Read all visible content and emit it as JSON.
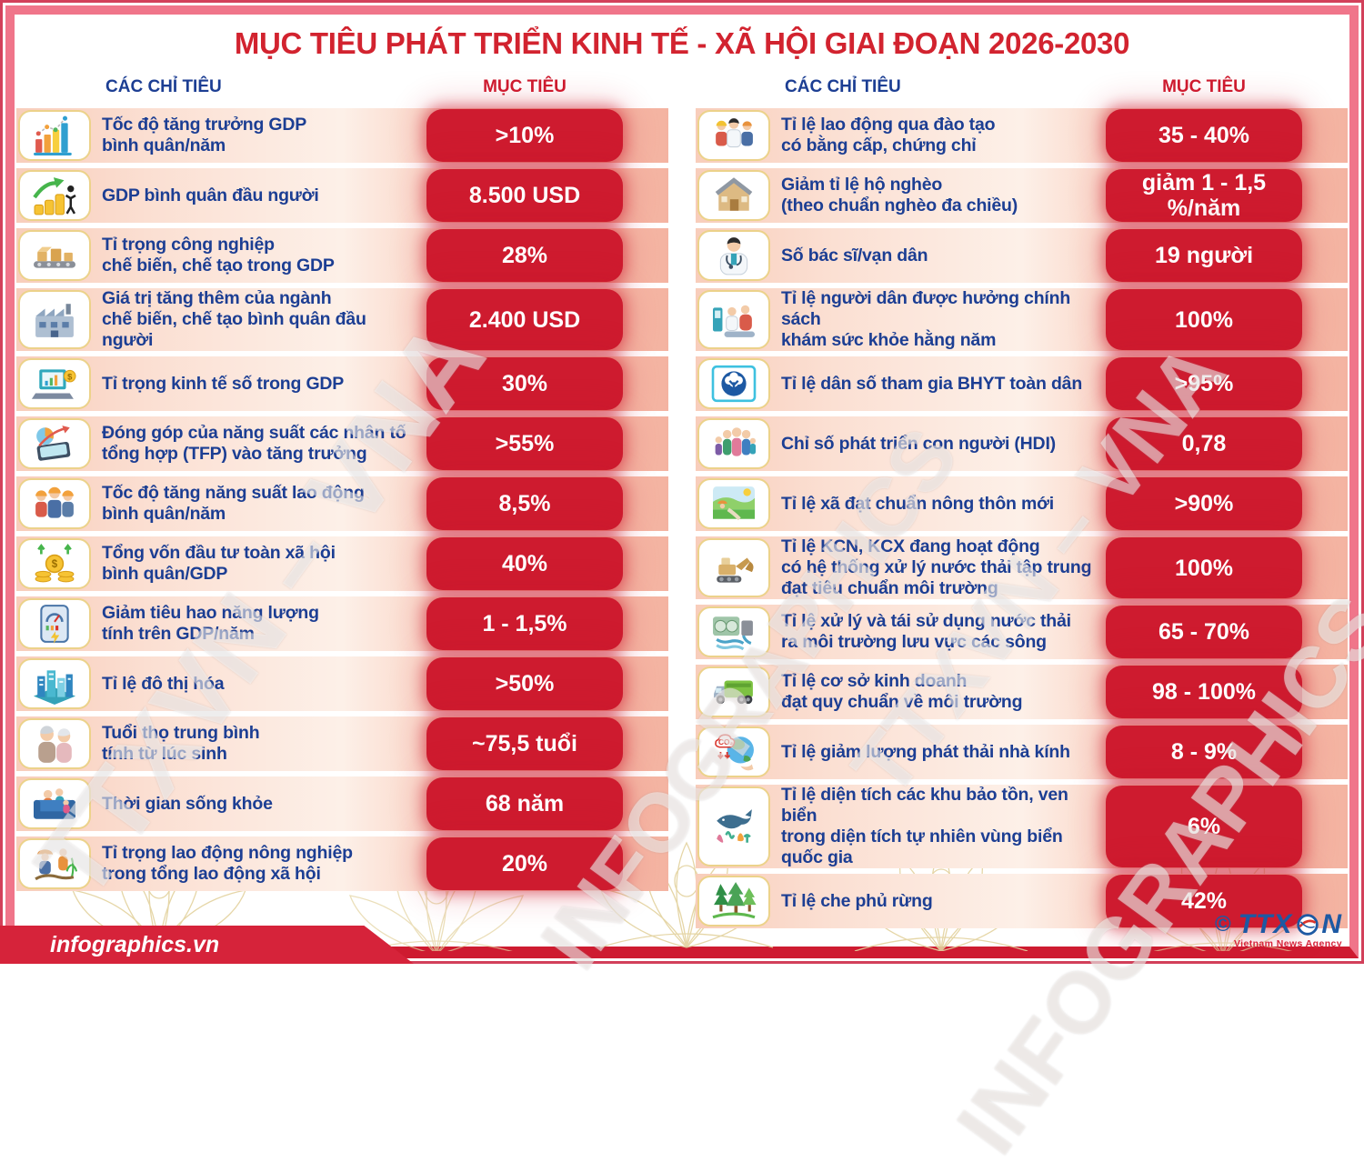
{
  "title": "MỤC TIÊU PHÁT TRIỂN KINH TẾ - XÃ HỘI GIAI ĐOẠN 2026-2030",
  "columns": {
    "indicators_header": "CÁC CHỈ TIÊU",
    "target_header": "MỤC TIÊU"
  },
  "tables": {
    "left": [
      {
        "icon": "gdp-growth",
        "label": "Tốc độ tăng trưởng GDP\nbình quân/năm",
        "value": ">10%"
      },
      {
        "icon": "gdp-per-capita",
        "label": "GDP bình quân đầu người",
        "value": "8.500 USD"
      },
      {
        "icon": "manufacturing-share",
        "label": "Tỉ trọng công nghiệp\nchế biến, chế tạo trong GDP",
        "value": "28%"
      },
      {
        "icon": "manufacturing-value",
        "label": "Giá trị tăng thêm của ngành\nchế biến, chế tạo bình quân đầu người",
        "value": "2.400 USD"
      },
      {
        "icon": "digital-economy",
        "label": "Tỉ trọng kinh tế số trong GDP",
        "value": "30%"
      },
      {
        "icon": "tfp-contribution",
        "label": "Đóng góp của năng suất các nhân tố\ntổng hợp (TFP) vào tăng trưởng",
        "value": ">55%"
      },
      {
        "icon": "labor-productivity",
        "label": "Tốc độ tăng năng suất lao động\nbình quân/năm",
        "value": "8,5%"
      },
      {
        "icon": "social-investment",
        "label": "Tổng vốn đầu tư toàn xã hội\nbình quân/GDP",
        "value": "40%"
      },
      {
        "icon": "energy-consumption",
        "label": "Giảm tiêu hao năng lượng\ntính trên GDP/năm",
        "value": "1 - 1,5%"
      },
      {
        "icon": "urbanization",
        "label": "Tỉ lệ đô thị hóa",
        "value": ">50%"
      },
      {
        "icon": "life-expectancy",
        "label": "Tuổi thọ trung bình\ntính từ lúc sinh",
        "value": "~75,5 tuổi"
      },
      {
        "icon": "healthy-life",
        "label": "Thời gian sống khỏe",
        "value": "68 năm"
      },
      {
        "icon": "agriculture-labor",
        "label": "Tỉ trọng lao động nông nghiệp\ntrong tổng lao động xã hội",
        "value": "20%"
      }
    ],
    "right": [
      {
        "icon": "trained-workers",
        "label": "Tỉ lệ lao động qua đào tạo\ncó bằng cấp, chứng chỉ",
        "value": "35 - 40%"
      },
      {
        "icon": "poverty-reduction",
        "label": "Giảm tỉ lệ hộ nghèo\n(theo chuẩn nghèo đa chiều)",
        "value": "giảm 1 - 1,5\n%/năm"
      },
      {
        "icon": "doctors-per-capita",
        "label": "Số bác sĩ/vạn dân",
        "value": "19 người"
      },
      {
        "icon": "health-checkup",
        "label": "Tỉ lệ người dân được hưởng chính sách\nkhám sức khỏe hằng năm",
        "value": "100%"
      },
      {
        "icon": "health-insurance",
        "label": "Tỉ lệ dân số tham gia BHYT toàn dân",
        "value": ">95%"
      },
      {
        "icon": "hdi",
        "label": "Chỉ số phát triển con người (HDI)",
        "value": "0,78"
      },
      {
        "icon": "new-rural",
        "label": "Tỉ lệ xã đạt chuẩn nông thôn mới",
        "value": ">90%"
      },
      {
        "icon": "industrial-wastewater",
        "label": "Tỉ lệ KCN, KCX đang hoạt động\ncó hệ thống xử lý nước thải tập trung\nđạt tiêu chuẩn môi trường",
        "value": "100%"
      },
      {
        "icon": "wastewater-reuse",
        "label": "Tỉ lệ xử lý và tái sử dụng nước thải\nra môi trường lưu vực các sông",
        "value": "65 - 70%"
      },
      {
        "icon": "business-environment",
        "label": "Tỉ lệ cơ sở kinh doanh\nđạt quy chuẩn về môi trường",
        "value": "98 - 100%"
      },
      {
        "icon": "greenhouse-gas",
        "label": "Tỉ lệ giảm lượng phát thải nhà kính",
        "value": "8 - 9%"
      },
      {
        "icon": "marine-reserves",
        "label": "Tỉ lệ diện tích các khu bảo tồn, ven biển\ntrong diện tích tự nhiên vùng biển quốc gia",
        "value": "6%"
      },
      {
        "icon": "forest-coverage",
        "label": "Tỉ lệ che phủ rừng",
        "value": "42%"
      }
    ]
  },
  "watermarks": [
    "TTXVN – VNA",
    "INFOGRAPHICS",
    "TTXVN – VNA",
    "INFOGRAPHICS"
  ],
  "footer": {
    "site": "infographics.vn",
    "copyright": "©",
    "agency_prefix": "TTX",
    "agency_suffix": "N",
    "agency_full": "TTXVN",
    "agency_sub": "Vietnam News Agency"
  },
  "colors": {
    "pill_red": "#ce1b2f",
    "title_red": "#d2232f",
    "label_blue": "#1c3e93",
    "frame_pink": "#f0758a",
    "icon_border_gold": "#ecd28a"
  }
}
